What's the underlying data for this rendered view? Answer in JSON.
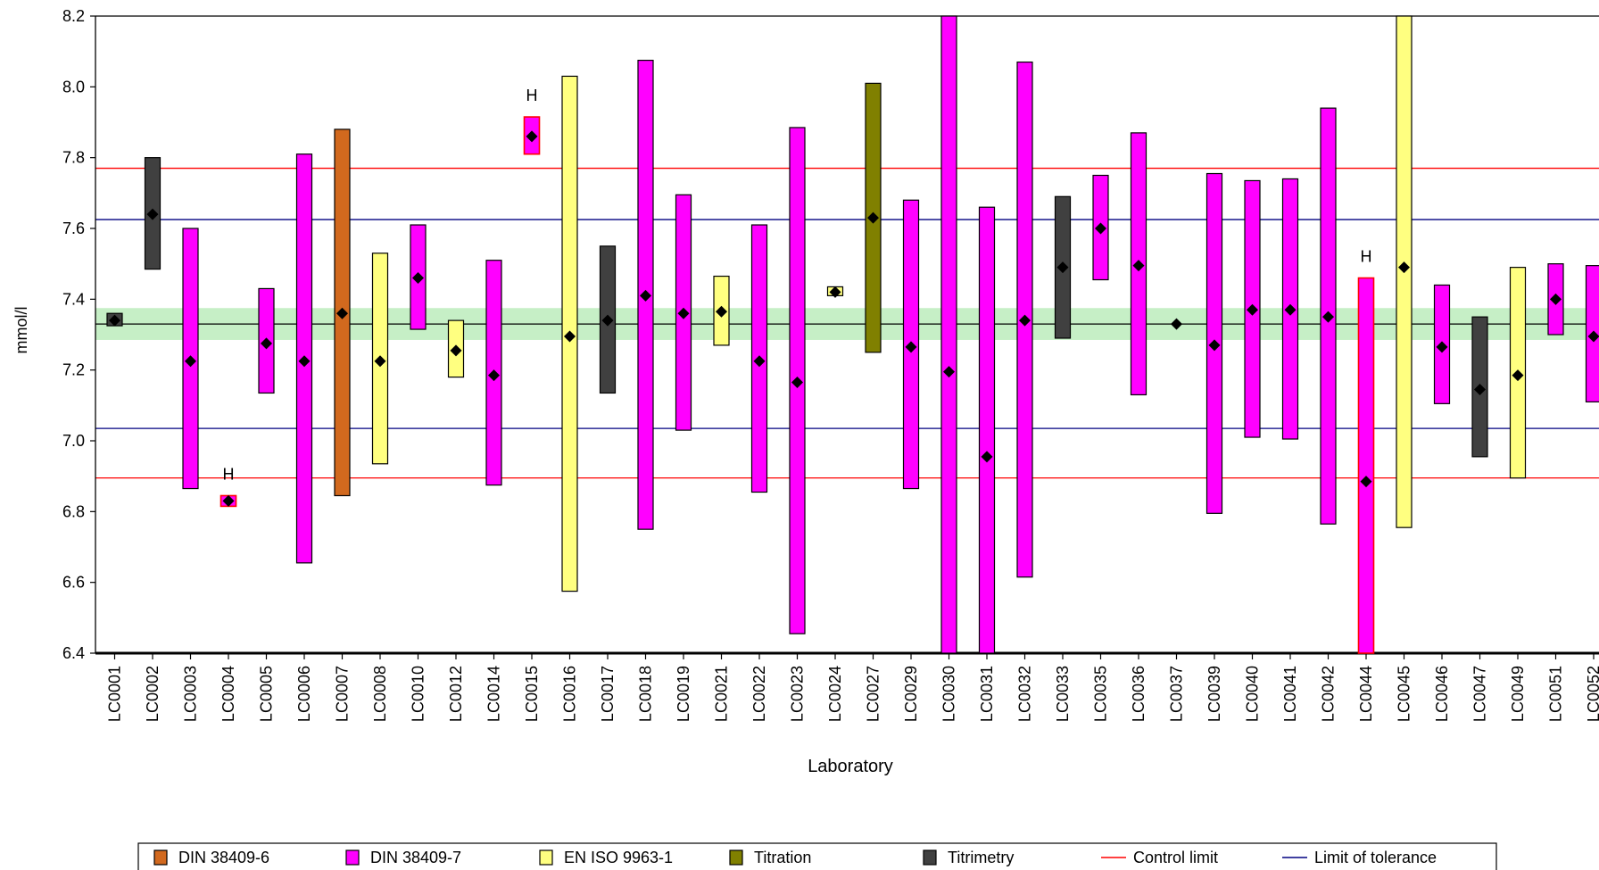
{
  "chart_data": {
    "type": "bar",
    "title": "",
    "xlabel": "Laboratory",
    "ylabel": "mmol/l",
    "ylim": [
      6.4,
      8.2
    ],
    "yticks": [
      "6.4",
      "6.6",
      "6.8",
      "7.0",
      "7.2",
      "7.4",
      "7.6",
      "7.8",
      "8.0",
      "8.2"
    ],
    "reference": {
      "assigned_value": 7.33,
      "uncertainty_band": [
        7.285,
        7.375
      ],
      "tolerance_limits": [
        7.035,
        7.625
      ],
      "control_limits": [
        6.895,
        7.77
      ]
    },
    "outlier_marker": "H",
    "method_colors": {
      "DIN 38409-6": "#d2691e",
      "DIN 38409-7": "#ff00ff",
      "EN ISO 9963-1": "#ffff80",
      "Titration": "#808000",
      "Titrimetry": "#404040"
    },
    "labs": [
      {
        "lab": "LC0001",
        "method": "Titrimetry",
        "value": 7.34,
        "low": 7.325,
        "high": 7.36
      },
      {
        "lab": "LC0002",
        "method": "Titrimetry",
        "value": 7.64,
        "low": 7.485,
        "high": 7.8
      },
      {
        "lab": "LC0003",
        "method": "DIN 38409-7",
        "value": 7.225,
        "low": 6.865,
        "high": 7.6
      },
      {
        "lab": "LC0004",
        "method": "DIN 38409-7",
        "value": 6.83,
        "low": 6.815,
        "high": 6.845,
        "outlier": true
      },
      {
        "lab": "LC0005",
        "method": "DIN 38409-7",
        "value": 7.275,
        "low": 7.135,
        "high": 7.43
      },
      {
        "lab": "LC0006",
        "method": "DIN 38409-7",
        "value": 7.225,
        "low": 6.655,
        "high": 7.81
      },
      {
        "lab": "LC0007",
        "method": "DIN 38409-6",
        "value": 7.36,
        "low": 6.845,
        "high": 7.88
      },
      {
        "lab": "LC0008",
        "method": "EN ISO 9963-1",
        "value": 7.225,
        "low": 6.935,
        "high": 7.53
      },
      {
        "lab": "LC0010",
        "method": "DIN 38409-7",
        "value": 7.46,
        "low": 7.315,
        "high": 7.61
      },
      {
        "lab": "LC0012",
        "method": "EN ISO 9963-1",
        "value": 7.255,
        "low": 7.18,
        "high": 7.34
      },
      {
        "lab": "LC0014",
        "method": "DIN 38409-7",
        "value": 7.185,
        "low": 6.875,
        "high": 7.51
      },
      {
        "lab": "LC0015",
        "method": "DIN 38409-7",
        "value": 7.86,
        "low": 7.81,
        "high": 7.915,
        "outlier": true
      },
      {
        "lab": "LC0016",
        "method": "EN ISO 9963-1",
        "value": 7.295,
        "low": 6.575,
        "high": 8.03
      },
      {
        "lab": "LC0017",
        "method": "Titrimetry",
        "value": 7.34,
        "low": 7.135,
        "high": 7.55
      },
      {
        "lab": "LC0018",
        "method": "DIN 38409-7",
        "value": 7.41,
        "low": 6.75,
        "high": 8.075
      },
      {
        "lab": "LC0019",
        "method": "DIN 38409-7",
        "value": 7.36,
        "low": 7.03,
        "high": 7.695
      },
      {
        "lab": "LC0021",
        "method": "EN ISO 9963-1",
        "value": 7.365,
        "low": 7.27,
        "high": 7.465
      },
      {
        "lab": "LC0022",
        "method": "DIN 38409-7",
        "value": 7.225,
        "low": 6.855,
        "high": 7.61
      },
      {
        "lab": "LC0023",
        "method": "DIN 38409-7",
        "value": 7.165,
        "low": 6.455,
        "high": 7.885
      },
      {
        "lab": "LC0024",
        "method": "EN ISO 9963-1",
        "value": 7.42,
        "low": 7.41,
        "high": 7.435
      },
      {
        "lab": "LC0027",
        "method": "Titration",
        "value": 7.63,
        "low": 7.25,
        "high": 8.01
      },
      {
        "lab": "LC0029",
        "method": "DIN 38409-7",
        "value": 7.265,
        "low": 6.865,
        "high": 7.68
      },
      {
        "lab": "LC0030",
        "method": "DIN 38409-7",
        "value": 7.195,
        "low": 6.4,
        "high": 8.2
      },
      {
        "lab": "LC0031",
        "method": "DIN 38409-7",
        "value": 6.955,
        "low": 6.4,
        "high": 7.66
      },
      {
        "lab": "LC0032",
        "method": "DIN 38409-7",
        "value": 7.34,
        "low": 6.615,
        "high": 8.07
      },
      {
        "lab": "LC0033",
        "method": "Titrimetry",
        "value": 7.49,
        "low": 7.29,
        "high": 7.69
      },
      {
        "lab": "LC0035",
        "method": "DIN 38409-7",
        "value": 7.6,
        "low": 7.455,
        "high": 7.75
      },
      {
        "lab": "LC0036",
        "method": "DIN 38409-7",
        "value": 7.495,
        "low": 7.13,
        "high": 7.87
      },
      {
        "lab": "LC0037",
        "method": "DIN 38409-7",
        "value": 7.33,
        "low": 7.33,
        "high": 7.33
      },
      {
        "lab": "LC0039",
        "method": "DIN 38409-7",
        "value": 7.27,
        "low": 6.795,
        "high": 7.755
      },
      {
        "lab": "LC0040",
        "method": "DIN 38409-7",
        "value": 7.37,
        "low": 7.01,
        "high": 7.735
      },
      {
        "lab": "LC0041",
        "method": "DIN 38409-7",
        "value": 7.37,
        "low": 7.005,
        "high": 7.74
      },
      {
        "lab": "LC0042",
        "method": "DIN 38409-7",
        "value": 7.35,
        "low": 6.765,
        "high": 7.94
      },
      {
        "lab": "LC0044",
        "method": "DIN 38409-7",
        "value": 6.885,
        "low": 6.4,
        "high": 7.46,
        "outlier": true
      },
      {
        "lab": "LC0045",
        "method": "EN ISO 9963-1",
        "value": 7.49,
        "low": 6.755,
        "high": 8.2
      },
      {
        "lab": "LC0046",
        "method": "DIN 38409-7",
        "value": 7.265,
        "low": 7.105,
        "high": 7.44
      },
      {
        "lab": "LC0047",
        "method": "Titrimetry",
        "value": 7.145,
        "low": 6.955,
        "high": 7.35
      },
      {
        "lab": "LC0049",
        "method": "EN ISO 9963-1",
        "value": 7.185,
        "low": 6.895,
        "high": 7.49
      },
      {
        "lab": "LC0051",
        "method": "DIN 38409-7",
        "value": 7.4,
        "low": 7.3,
        "high": 7.5
      },
      {
        "lab": "LC0052",
        "method": "DIN 38409-7",
        "value": 7.295,
        "low": 7.11,
        "high": 7.495
      }
    ],
    "legend": {
      "placement": "bottom",
      "items": [
        {
          "label": "DIN 38409-6",
          "kind": "box",
          "color": "#d2691e"
        },
        {
          "label": "DIN 38409-7",
          "kind": "box",
          "color": "#ff00ff"
        },
        {
          "label": "EN ISO 9963-1",
          "kind": "box",
          "color": "#ffff80"
        },
        {
          "label": "Titration",
          "kind": "box",
          "color": "#808000"
        },
        {
          "label": "Titrimetry",
          "kind": "box",
          "color": "#404040"
        },
        {
          "label": "Control limit",
          "kind": "line",
          "color": "#ff0000"
        },
        {
          "label": "Limit of tolerance",
          "kind": "line",
          "color": "#000080"
        }
      ]
    }
  }
}
